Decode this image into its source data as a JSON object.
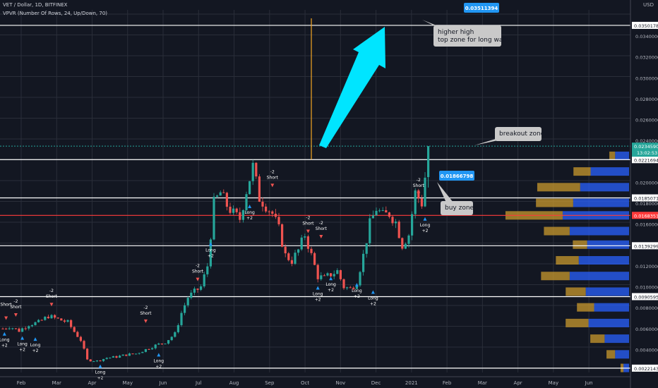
{
  "header": {
    "symbol_line": "VET / Dollar, 1D, BITFINEX",
    "indicator_line": "VPVR (Number Of Rows, 24, Up/Down, 70)",
    "currency": "USD"
  },
  "chart_data": {
    "type": "candlestick",
    "symbol": "VET / Dollar",
    "timeframe": "1D",
    "exchange": "BITFINEX",
    "y_range": [
      0.0018,
      0.0365
    ],
    "x_months": [
      "Feb",
      "Mar",
      "Apr",
      "May",
      "Jun",
      "Jul",
      "Aug",
      "Sep",
      "Oct",
      "Nov",
      "Dec",
      "2021",
      "Feb",
      "Mar",
      "Apr",
      "May",
      "Jun"
    ],
    "y_ticks": [
      "0.03400000",
      "0.03200000",
      "0.03000000",
      "0.02800000",
      "0.02600000",
      "0.02400000",
      "0.02000000",
      "0.01800000",
      "0.01600000",
      "0.01200000",
      "0.01000000",
      "0.00800000",
      "0.00600000",
      "0.00400000"
    ],
    "price_series": [
      [
        0,
        0.006
      ],
      [
        2,
        0.0062
      ],
      [
        5,
        0.0058
      ],
      [
        8,
        0.0064
      ],
      [
        11,
        0.0066
      ],
      [
        14,
        0.0072
      ],
      [
        17,
        0.0069
      ],
      [
        20,
        0.0066
      ],
      [
        22,
        0.0057
      ],
      [
        24,
        0.0049
      ],
      [
        26,
        0.003
      ],
      [
        29,
        0.0029
      ],
      [
        32,
        0.0032
      ],
      [
        35,
        0.0033
      ],
      [
        38,
        0.0035
      ],
      [
        41,
        0.0036
      ],
      [
        44,
        0.004
      ],
      [
        47,
        0.0044
      ],
      [
        50,
        0.0047
      ],
      [
        53,
        0.0055
      ],
      [
        55,
        0.0075
      ],
      [
        57,
        0.009
      ],
      [
        59,
        0.0095
      ],
      [
        61,
        0.01
      ],
      [
        63,
        0.012
      ],
      [
        65,
        0.018
      ],
      [
        67,
        0.019
      ],
      [
        69,
        0.0178
      ],
      [
        71,
        0.017
      ],
      [
        73,
        0.0165
      ],
      [
        75,
        0.0192
      ],
      [
        77,
        0.0215
      ],
      [
        79,
        0.0185
      ],
      [
        81,
        0.0178
      ],
      [
        83,
        0.017
      ],
      [
        85,
        0.0155
      ],
      [
        87,
        0.013
      ],
      [
        89,
        0.0125
      ],
      [
        91,
        0.0135
      ],
      [
        93,
        0.015
      ],
      [
        95,
        0.013
      ],
      [
        97,
        0.011
      ],
      [
        99,
        0.0108
      ],
      [
        101,
        0.0112
      ],
      [
        103,
        0.0115
      ],
      [
        105,
        0.01
      ],
      [
        107,
        0.0098
      ],
      [
        109,
        0.0105
      ],
      [
        111,
        0.013
      ],
      [
        113,
        0.016
      ],
      [
        115,
        0.0175
      ],
      [
        117,
        0.0168
      ],
      [
        119,
        0.017
      ],
      [
        121,
        0.0162
      ],
      [
        123,
        0.014
      ],
      [
        125,
        0.015
      ],
      [
        127,
        0.019
      ],
      [
        129,
        0.018
      ],
      [
        131,
        0.023
      ]
    ],
    "horizontal_levels": [
      {
        "value": 0.03501784,
        "label": "0.03501784",
        "color": "#ffffff"
      },
      {
        "value": 0.02216941,
        "label": "0.02216941",
        "color": "#ffffff"
      },
      {
        "value": 0.01850714,
        "label": "0.01850714",
        "color": "#ffffff"
      },
      {
        "value": 0.01683519,
        "label": "0.01683519",
        "color": "#ff3b3b"
      },
      {
        "value": 0.01392991,
        "label": "0.01392991",
        "color": "#ffffff"
      },
      {
        "value": 0.00905955,
        "label": "0.00905955",
        "color": "#ffffff"
      },
      {
        "value": 0.00221436,
        "label": "0.00221436",
        "color": "#ffffff"
      }
    ],
    "last_price": {
      "value": "0.02345903",
      "timer": "13:02:53"
    },
    "price_tags": [
      {
        "value": 0.03511394,
        "label": "0.03511394"
      },
      {
        "value": 0.01866798,
        "label": "0.01866798"
      }
    ],
    "signals": [
      {
        "x": 1,
        "y": 0.0071,
        "kind": "short",
        "text": [
          "Short"
        ]
      },
      {
        "x": 4,
        "y": 0.0074,
        "kind": "short",
        "text": [
          "-2",
          "Short"
        ]
      },
      {
        "x": 15,
        "y": 0.0084,
        "kind": "short",
        "text": [
          "-2",
          "Short"
        ]
      },
      {
        "x": 0.5,
        "y": 0.0056,
        "kind": "long",
        "text": [
          "Long",
          "+2"
        ]
      },
      {
        "x": 6,
        "y": 0.0052,
        "kind": "long",
        "text": [
          "Long",
          "+2"
        ]
      },
      {
        "x": 10,
        "y": 0.0051,
        "kind": "long",
        "text": [
          "Long",
          "+2"
        ]
      },
      {
        "x": 30,
        "y": 0.0025,
        "kind": "long",
        "text": [
          "Long",
          "+2"
        ]
      },
      {
        "x": 44,
        "y": 0.0068,
        "kind": "short",
        "text": [
          "-2",
          "Short"
        ]
      },
      {
        "x": 48,
        "y": 0.0036,
        "kind": "long",
        "text": [
          "Long",
          "+2"
        ]
      },
      {
        "x": 60,
        "y": 0.0108,
        "kind": "short",
        "text": [
          "-2",
          "Short"
        ]
      },
      {
        "x": 64,
        "y": 0.0142,
        "kind": "long",
        "text": [
          "Long",
          "+2"
        ]
      },
      {
        "x": 83,
        "y": 0.0198,
        "kind": "short",
        "text": [
          "-2",
          "Short"
        ]
      },
      {
        "x": 76,
        "y": 0.0178,
        "kind": "long",
        "text": [
          "Long",
          "+2"
        ]
      },
      {
        "x": 94,
        "y": 0.0154,
        "kind": "short",
        "text": [
          "-2",
          "Short"
        ]
      },
      {
        "x": 98,
        "y": 0.0149,
        "kind": "short",
        "text": [
          "-2",
          "Short"
        ]
      },
      {
        "x": 97,
        "y": 0.01,
        "kind": "long",
        "text": [
          "Long",
          "+2"
        ]
      },
      {
        "x": 109,
        "y": 0.0103,
        "kind": "long",
        "text": [
          "Long",
          "+2"
        ]
      },
      {
        "x": 101,
        "y": 0.0109,
        "kind": "long",
        "text": [
          "Long",
          "+2"
        ]
      },
      {
        "x": 114,
        "y": 0.0096,
        "kind": "long",
        "text": [
          "Long",
          "+2"
        ]
      },
      {
        "x": 128,
        "y": 0.019,
        "kind": "short",
        "text": [
          "-2",
          "Short"
        ]
      },
      {
        "x": 130,
        "y": 0.0166,
        "kind": "long",
        "text": [
          "Long",
          "+2"
        ]
      }
    ],
    "annotations": [
      {
        "id": "higher-high",
        "text": [
          "higher high",
          "top zone for long wally"
        ]
      },
      {
        "id": "breakout",
        "text": [
          "breakout zone"
        ]
      },
      {
        "id": "buy",
        "text": [
          "buy zone"
        ]
      }
    ],
    "volume_profile": [
      {
        "y": 0.0225,
        "up": 0.2,
        "down": 0.1
      },
      {
        "y": 0.021,
        "up": 0.55,
        "down": 0.3
      },
      {
        "y": 0.0195,
        "up": 0.7,
        "down": 0.75
      },
      {
        "y": 0.018,
        "up": 0.8,
        "down": 0.65
      },
      {
        "y": 0.0168,
        "up": 0.95,
        "down": 1.0
      },
      {
        "y": 0.0153,
        "up": 0.85,
        "down": 0.45
      },
      {
        "y": 0.014,
        "up": 0.6,
        "down": 0.25
      },
      {
        "y": 0.0125,
        "up": 0.72,
        "down": 0.4
      },
      {
        "y": 0.011,
        "up": 0.85,
        "down": 0.5
      },
      {
        "y": 0.0095,
        "up": 0.62,
        "down": 0.35
      },
      {
        "y": 0.008,
        "up": 0.5,
        "down": 0.3
      },
      {
        "y": 0.0065,
        "up": 0.58,
        "down": 0.4
      },
      {
        "y": 0.005,
        "up": 0.35,
        "down": 0.25
      },
      {
        "y": 0.0035,
        "up": 0.2,
        "down": 0.15
      },
      {
        "y": 0.0022,
        "up": 0.08,
        "down": 0.05
      }
    ]
  }
}
